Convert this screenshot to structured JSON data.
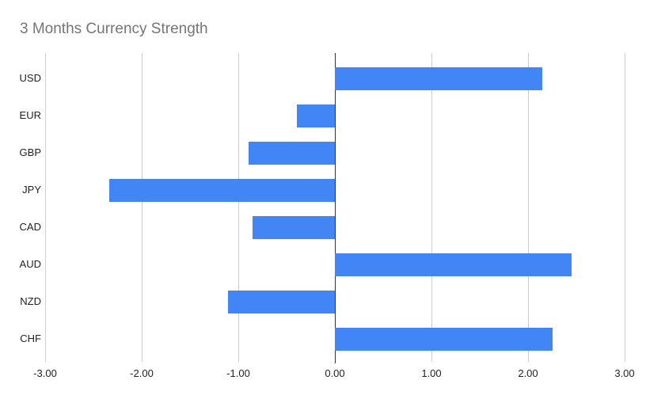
{
  "title": "3 Months Currency Strength",
  "colors": {
    "background": "#ffffff",
    "bar": "#4285f4",
    "title_text": "#757575",
    "axis_text": "#222222",
    "gridline": "#cccccc",
    "zero_line": "#333333"
  },
  "chart_data": {
    "type": "bar",
    "orientation": "horizontal",
    "title": "3 Months Currency Strength",
    "xlabel": "",
    "ylabel": "",
    "categories": [
      "USD",
      "EUR",
      "GBP",
      "JPY",
      "CAD",
      "AUD",
      "NZD",
      "CHF"
    ],
    "values": [
      2.15,
      -0.39,
      -0.89,
      -2.34,
      -0.85,
      2.45,
      -1.11,
      2.25
    ],
    "xlim": [
      -3,
      3
    ],
    "x_ticks": [
      -3,
      -2,
      -1,
      0,
      1,
      2,
      3
    ],
    "x_tick_labels": [
      "-3.00",
      "-2.00",
      "-1.00",
      "0.00",
      "1.00",
      "2.00",
      "3.00"
    ],
    "grid": true,
    "legend": false
  }
}
